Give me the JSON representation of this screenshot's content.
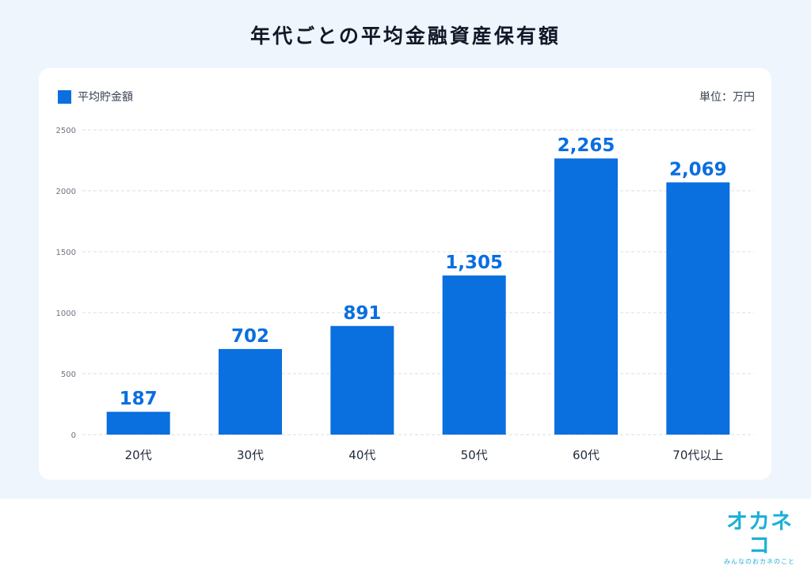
{
  "page": {
    "title": "年代ごとの平均金融資産保有額"
  },
  "chart_data": {
    "type": "bar",
    "title": "年代ごとの平均金融資産保有額",
    "unit_label": "単位：万円",
    "categories": [
      "20代",
      "30代",
      "40代",
      "50代",
      "60代",
      "70代以上"
    ],
    "series": [
      {
        "name": "平均貯金額",
        "values": [
          187,
          702,
          891,
          1305,
          2265,
          2069
        ],
        "color": "#0a6fdf"
      }
    ],
    "data_labels": [
      "187",
      "702",
      "891",
      "1,305",
      "2,265",
      "2,069"
    ],
    "y_ticks": [
      0,
      500,
      1000,
      1500,
      2000,
      2500
    ],
    "ylim": [
      0,
      2500
    ],
    "grid": true,
    "legend_position": "top-left",
    "label_color": "#0a6fdf",
    "grid_color": "#d9dde3"
  },
  "brand": {
    "name": "オカネコ",
    "tagline": "みんなのおカネのこと",
    "color": "#1cb0d8"
  }
}
